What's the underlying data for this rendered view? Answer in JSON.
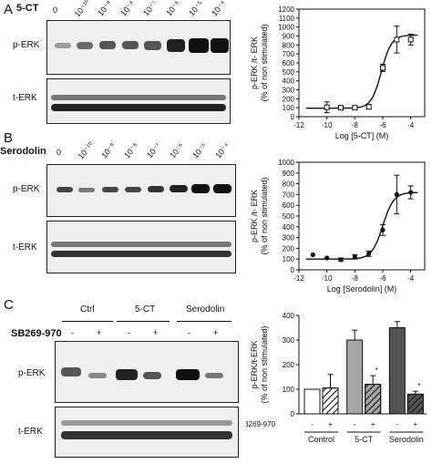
{
  "panels": {
    "a": {
      "letter": "A",
      "ligand_label": "5-CT",
      "doses": [
        "0",
        "10⁻¹⁰",
        "10⁻⁹",
        "10⁻⁸",
        "10⁻⁷",
        "10⁻⁶",
        "10⁻⁵",
        "10⁻⁴"
      ],
      "blot_top_label": "p-ERK",
      "blot_bottom_label": "t-ERK"
    },
    "b": {
      "letter": "B",
      "ligand_label": "Serodolin",
      "doses": [
        "0",
        "10⁻¹⁰",
        "10⁻⁹",
        "10⁻⁸",
        "10⁻⁷",
        "10⁻⁶",
        "10⁻⁵",
        "10⁻⁴"
      ],
      "blot_top_label": "p-ERK",
      "blot_bottom_label": "t-ERK"
    },
    "c": {
      "letter": "C",
      "groups": [
        "Ctrl",
        "5-CT",
        "Serodolin"
      ],
      "sb_label": "SB269-970",
      "sb_signs": [
        "-",
        "+",
        "-",
        "+",
        "-",
        "+"
      ],
      "blot_top_label": "p-ERK",
      "blot_bottom_label": "t-ERK"
    }
  },
  "chart_data": [
    {
      "type": "scatter",
      "curve": "sigmoid",
      "xlabel": "Log [5-CT] (M)",
      "ylabel_line1": "p-ERK /t- ERK",
      "ylabel_line2": "(% of non stimulated)",
      "xlim": [
        -12,
        -3
      ],
      "ylim": [
        0,
        1200
      ],
      "xticks": [
        "-12",
        "-10",
        "-8",
        "-6",
        "-4"
      ],
      "yticks": [
        "0",
        "100",
        "200",
        "300",
        "400",
        "500",
        "600",
        "700",
        "800",
        "900",
        "1000",
        "1100",
        "1200"
      ],
      "marker": "square",
      "x": [
        -10,
        -9,
        -8,
        -7,
        -6,
        -5,
        -4
      ],
      "y": [
        105,
        100,
        100,
        110,
        545,
        860,
        860
      ],
      "err": [
        60,
        20,
        15,
        25,
        40,
        150,
        60
      ],
      "fit": {
        "bottom": 95,
        "top": 910,
        "logEC50": -6.1,
        "hill": 1.2
      }
    },
    {
      "type": "scatter",
      "curve": "sigmoid",
      "xlabel": "Log [Serodolin] (M)",
      "ylabel_line1": "p-ERK /t- ERK",
      "ylabel_line2": "(% of non stimulated)",
      "xlim": [
        -12,
        -3
      ],
      "ylim": [
        0,
        1000
      ],
      "xticks": [
        "-12",
        "-10",
        "-8",
        "-6",
        "-4"
      ],
      "yticks": [
        "0",
        "100",
        "200",
        "300",
        "400",
        "500",
        "600",
        "700",
        "800",
        "900",
        "1000"
      ],
      "marker": "circle",
      "x": [
        -11,
        -10,
        -9,
        -8,
        -7,
        -6,
        -5,
        -4
      ],
      "y": [
        140,
        110,
        95,
        120,
        150,
        370,
        700,
        720
      ],
      "err": [
        0,
        0,
        15,
        20,
        25,
        50,
        180,
        60
      ],
      "fit": {
        "bottom": 100,
        "top": 720,
        "logEC50": -6.0,
        "hill": 1.1
      }
    },
    {
      "type": "bar",
      "ylabel_line1": "p-ERK/t-ERK",
      "ylabel_line2": "(% of non stimulated)",
      "ylim": [
        0,
        400
      ],
      "yticks": [
        "0",
        "100",
        "200",
        "300",
        "400"
      ],
      "categories": [
        "Control",
        "5-CT",
        "Serodolin"
      ],
      "sb_label": "SB269-970",
      "sb_signs": [
        "-",
        "+",
        "-",
        "+",
        "-",
        "+"
      ],
      "bars": [
        {
          "group": "Control",
          "sb": "-",
          "value": 100,
          "err": 0,
          "color": "#ffffff",
          "hatched": false,
          "sig": ""
        },
        {
          "group": "Control",
          "sb": "+",
          "value": 105,
          "err": 55,
          "color": "#ffffff",
          "hatched": true,
          "sig": ""
        },
        {
          "group": "5-CT",
          "sb": "-",
          "value": 300,
          "err": 40,
          "color": "#a6a6a6",
          "hatched": false,
          "sig": ""
        },
        {
          "group": "5-CT",
          "sb": "+",
          "value": 120,
          "err": 35,
          "color": "#a6a6a6",
          "hatched": true,
          "sig": "*"
        },
        {
          "group": "Serodolin",
          "sb": "-",
          "value": 350,
          "err": 25,
          "color": "#555555",
          "hatched": false,
          "sig": ""
        },
        {
          "group": "Serodolin",
          "sb": "+",
          "value": 80,
          "err": 12,
          "color": "#555555",
          "hatched": true,
          "sig": "*"
        }
      ]
    }
  ]
}
